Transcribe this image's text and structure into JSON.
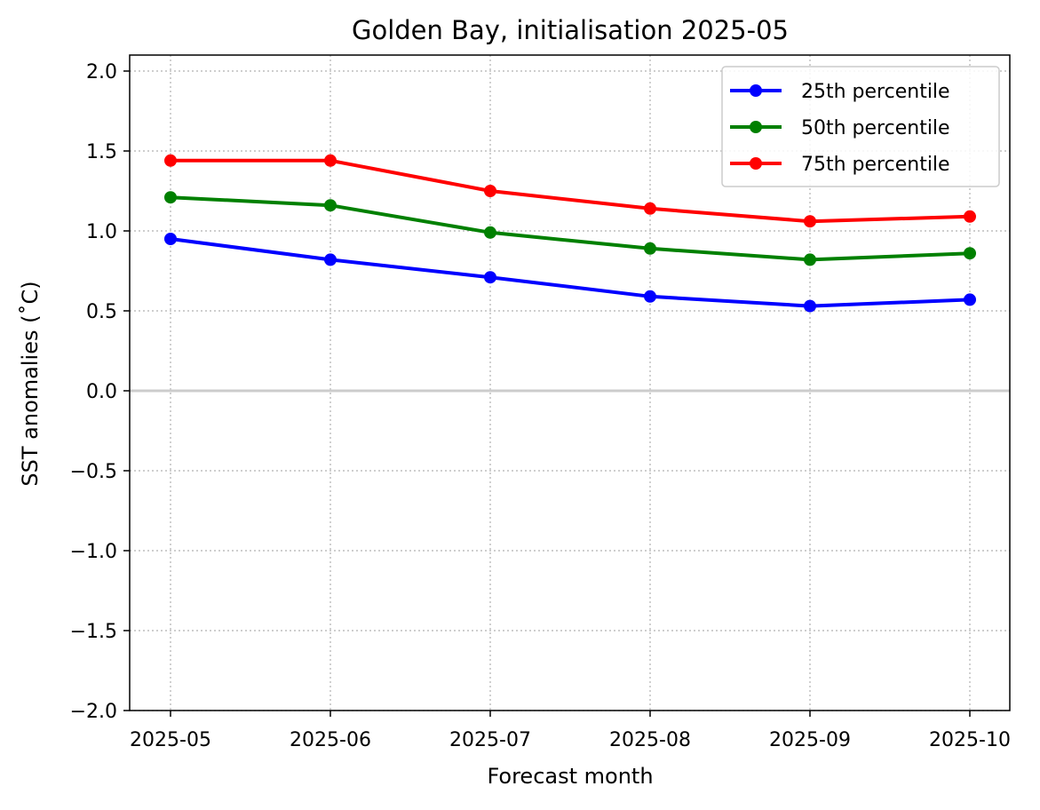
{
  "chart_data": {
    "type": "line",
    "title": "Golden Bay, initialisation 2025-05",
    "xlabel": "Forecast month",
    "ylabel": "SST anomalies (˚C)",
    "categories": [
      "2025-05",
      "2025-06",
      "2025-07",
      "2025-08",
      "2025-09",
      "2025-10"
    ],
    "ylim": [
      -2.0,
      2.1
    ],
    "yticks": [
      -2.0,
      -1.5,
      -1.0,
      -0.5,
      0.0,
      0.5,
      1.0,
      1.5,
      2.0
    ],
    "ytick_labels": [
      "−2.0",
      "−1.5",
      "−1.0",
      "−0.5",
      "0.0",
      "0.5",
      "1.0",
      "1.5",
      "2.0"
    ],
    "grid": true,
    "zero_line": true,
    "legend_position": "top-right",
    "series": [
      {
        "name": "25th percentile",
        "color": "#0000ff",
        "values": [
          0.95,
          0.82,
          0.71,
          0.59,
          0.53,
          0.57
        ]
      },
      {
        "name": "50th percentile",
        "color": "#008000",
        "values": [
          1.21,
          1.16,
          0.99,
          0.89,
          0.82,
          0.86
        ]
      },
      {
        "name": "75th percentile",
        "color": "#ff0000",
        "values": [
          1.44,
          1.44,
          1.25,
          1.14,
          1.06,
          1.09
        ]
      }
    ]
  }
}
